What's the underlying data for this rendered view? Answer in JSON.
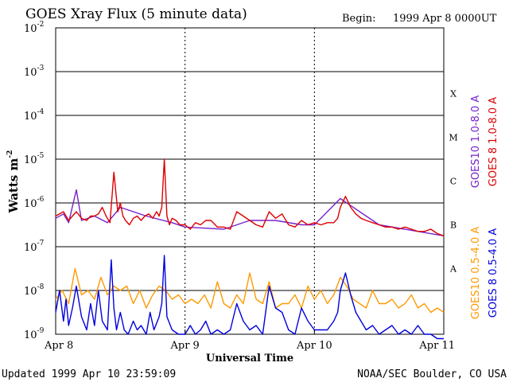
{
  "chart_data": {
    "type": "line",
    "title": "GOES Xray Flux (5 minute data)",
    "begin_label": "Begin:",
    "begin_value": "1999 Apr 8 0000UT",
    "xlabel": "Universal Time",
    "ylabel": "Watts m",
    "ylabel_exp": "-2",
    "x_ticks": [
      "Apr 8",
      "Apr 9",
      "Apr 10",
      "Apr 11"
    ],
    "xlim": [
      0,
      3
    ],
    "x_unit": "days since 1999 Apr 8 0000UT",
    "ylim_exp": [
      -9,
      -2
    ],
    "log_scale": true,
    "y_ticks": [
      {
        "base": "10",
        "exp": "-2"
      },
      {
        "base": "10",
        "exp": "-3"
      },
      {
        "base": "10",
        "exp": "-4"
      },
      {
        "base": "10",
        "exp": "-5"
      },
      {
        "base": "10",
        "exp": "-6"
      },
      {
        "base": "10",
        "exp": "-7"
      },
      {
        "base": "10",
        "exp": "-8"
      },
      {
        "base": "10",
        "exp": "-9"
      }
    ],
    "flare_classes": [
      "X",
      "M",
      "C",
      "B",
      "A"
    ],
    "grid": "horizontal lines at each decade, dashed vertical lines at day boundaries",
    "series": [
      {
        "name": "GOES 8 1.0-8.0 A",
        "color": "#dd0000",
        "x": [
          0.0,
          0.06,
          0.1,
          0.13,
          0.16,
          0.2,
          0.24,
          0.27,
          0.3,
          0.33,
          0.36,
          0.39,
          0.42,
          0.45,
          0.48,
          0.5,
          0.52,
          0.54,
          0.57,
          0.6,
          0.63,
          0.66,
          0.69,
          0.72,
          0.75,
          0.78,
          0.8,
          0.82,
          0.84,
          0.86,
          0.88,
          0.9,
          0.93,
          0.96,
          1.0,
          1.04,
          1.08,
          1.12,
          1.16,
          1.2,
          1.25,
          1.3,
          1.35,
          1.4,
          1.45,
          1.5,
          1.55,
          1.6,
          1.65,
          1.7,
          1.75,
          1.8,
          1.85,
          1.9,
          1.95,
          2.0,
          2.05,
          2.1,
          2.15,
          2.18,
          2.2,
          2.24,
          2.28,
          2.32,
          2.36,
          2.4,
          2.45,
          2.5,
          2.55,
          2.6,
          2.65,
          2.7,
          2.75,
          2.8,
          2.85,
          2.9,
          2.95,
          3.0
        ],
        "y_log10": [
          -6.3,
          -6.2,
          -6.4,
          -6.3,
          -6.2,
          -6.35,
          -6.4,
          -6.3,
          -6.3,
          -6.25,
          -6.1,
          -6.3,
          -6.45,
          -5.3,
          -6.2,
          -6.0,
          -6.3,
          -6.4,
          -6.5,
          -6.35,
          -6.3,
          -6.4,
          -6.3,
          -6.25,
          -6.35,
          -6.2,
          -6.3,
          -6.1,
          -5.0,
          -6.3,
          -6.5,
          -6.35,
          -6.4,
          -6.5,
          -6.5,
          -6.6,
          -6.45,
          -6.5,
          -6.4,
          -6.4,
          -6.55,
          -6.55,
          -6.6,
          -6.2,
          -6.3,
          -6.4,
          -6.5,
          -6.55,
          -6.2,
          -6.35,
          -6.25,
          -6.5,
          -6.55,
          -6.4,
          -6.5,
          -6.45,
          -6.5,
          -6.45,
          -6.45,
          -6.35,
          -6.1,
          -5.85,
          -6.1,
          -6.25,
          -6.35,
          -6.4,
          -6.45,
          -6.5,
          -6.55,
          -6.55,
          -6.6,
          -6.55,
          -6.6,
          -6.65,
          -6.65,
          -6.6,
          -6.7,
          -6.75
        ]
      },
      {
        "name": "GOES10 1.0-8.0 A",
        "color": "#7722cc",
        "x": [
          0.0,
          0.06,
          0.1,
          0.16,
          0.2,
          0.3,
          0.4,
          0.5,
          0.7,
          0.9,
          1.0,
          1.3,
          1.5,
          1.7,
          1.9,
          2.0,
          2.2,
          2.5,
          2.8,
          3.0
        ],
        "y_log10": [
          -6.35,
          -6.25,
          -6.45,
          -5.7,
          -6.4,
          -6.3,
          -6.45,
          -6.1,
          -6.3,
          -6.45,
          -6.55,
          -6.6,
          -6.4,
          -6.4,
          -6.5,
          -6.5,
          -5.9,
          -6.5,
          -6.65,
          -6.75
        ]
      },
      {
        "name": "GOES10 0.5-4.0 A",
        "color": "#ff9900",
        "x": [
          0.0,
          0.05,
          0.1,
          0.15,
          0.2,
          0.25,
          0.3,
          0.35,
          0.4,
          0.45,
          0.5,
          0.55,
          0.6,
          0.65,
          0.7,
          0.75,
          0.8,
          0.85,
          0.9,
          0.95,
          1.0,
          1.05,
          1.1,
          1.15,
          1.2,
          1.25,
          1.3,
          1.35,
          1.4,
          1.45,
          1.5,
          1.55,
          1.6,
          1.65,
          1.7,
          1.75,
          1.8,
          1.85,
          1.9,
          1.95,
          2.0,
          2.05,
          2.1,
          2.15,
          2.2,
          2.25,
          2.3,
          2.35,
          2.4,
          2.45,
          2.5,
          2.55,
          2.6,
          2.65,
          2.7,
          2.75,
          2.8,
          2.85,
          2.9,
          2.95,
          3.0
        ],
        "y_log10": [
          -8.2,
          -8.0,
          -8.3,
          -7.5,
          -8.1,
          -8.0,
          -8.2,
          -7.7,
          -8.1,
          -7.9,
          -8.0,
          -7.9,
          -8.3,
          -8.0,
          -8.4,
          -8.1,
          -7.9,
          -8.0,
          -8.2,
          -8.1,
          -8.3,
          -8.2,
          -8.3,
          -8.1,
          -8.4,
          -7.8,
          -8.3,
          -8.4,
          -8.1,
          -8.3,
          -7.6,
          -8.2,
          -8.3,
          -7.8,
          -8.4,
          -8.3,
          -8.3,
          -8.1,
          -8.4,
          -7.9,
          -8.2,
          -8.0,
          -8.3,
          -8.1,
          -7.7,
          -7.9,
          -8.2,
          -8.3,
          -8.4,
          -8.0,
          -8.3,
          -8.3,
          -8.2,
          -8.4,
          -8.3,
          -8.1,
          -8.4,
          -8.3,
          -8.5,
          -8.4,
          -8.5
        ]
      },
      {
        "name": "GOES 8 0.5-4.0 A",
        "color": "#0000dd",
        "x": [
          0.0,
          0.03,
          0.06,
          0.08,
          0.1,
          0.13,
          0.16,
          0.2,
          0.24,
          0.27,
          0.3,
          0.33,
          0.36,
          0.4,
          0.43,
          0.45,
          0.47,
          0.5,
          0.53,
          0.56,
          0.6,
          0.63,
          0.66,
          0.7,
          0.73,
          0.76,
          0.8,
          0.82,
          0.84,
          0.86,
          0.9,
          0.95,
          1.0,
          1.04,
          1.08,
          1.12,
          1.16,
          1.2,
          1.25,
          1.3,
          1.35,
          1.4,
          1.45,
          1.5,
          1.55,
          1.6,
          1.65,
          1.7,
          1.75,
          1.8,
          1.85,
          1.9,
          1.95,
          2.0,
          2.05,
          2.1,
          2.15,
          2.18,
          2.2,
          2.24,
          2.28,
          2.32,
          2.36,
          2.4,
          2.45,
          2.5,
          2.55,
          2.6,
          2.65,
          2.7,
          2.75,
          2.8,
          2.85,
          2.9,
          2.95,
          3.0
        ],
        "y_log10": [
          -8.5,
          -8.0,
          -8.7,
          -8.2,
          -8.8,
          -8.4,
          -7.9,
          -8.6,
          -8.9,
          -8.3,
          -8.8,
          -8.0,
          -8.7,
          -8.9,
          -7.3,
          -8.4,
          -8.9,
          -8.5,
          -8.9,
          -9.0,
          -8.7,
          -8.9,
          -8.8,
          -9.0,
          -8.5,
          -8.9,
          -8.6,
          -8.3,
          -7.2,
          -8.6,
          -8.9,
          -9.0,
          -9.0,
          -8.8,
          -9.0,
          -8.9,
          -8.7,
          -9.0,
          -8.9,
          -9.0,
          -8.9,
          -8.3,
          -8.7,
          -8.9,
          -8.8,
          -9.0,
          -7.9,
          -8.4,
          -8.5,
          -8.9,
          -9.0,
          -8.4,
          -8.7,
          -8.9,
          -8.9,
          -8.9,
          -8.7,
          -8.5,
          -8.0,
          -7.6,
          -8.1,
          -8.5,
          -8.7,
          -8.9,
          -8.8,
          -9.0,
          -8.9,
          -8.8,
          -9.0,
          -8.9,
          -9.0,
          -8.8,
          -9.0,
          -9.0,
          -9.1,
          -9.1
        ]
      }
    ]
  },
  "footer": {
    "updated": "Updated 1999 Apr 10 23:59:09",
    "source": "NOAA/SEC Boulder, CO USA"
  }
}
